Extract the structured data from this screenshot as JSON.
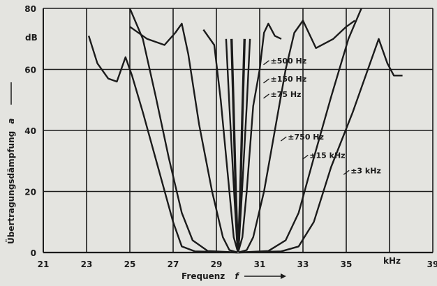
{
  "chart_data": {
    "type": "line",
    "title": "",
    "xlabel": "Frequenz",
    "xsymbol": "f",
    "ylabel": "Übertragungsdämpfung",
    "ysymbol": "a",
    "yunit": "dB",
    "xunit": "kHz",
    "xlim": [
      21,
      39
    ],
    "ylim": [
      0,
      80
    ],
    "grid": true,
    "x_ticks": [
      "21",
      "23",
      "25",
      "27",
      "29",
      "31",
      "33",
      "35",
      "39"
    ],
    "y_ticks": [
      "0",
      "20",
      "40",
      "60",
      "80"
    ],
    "series": [
      {
        "name": "±3 kHz",
        "style": "solid",
        "points": [
          [
            23.1,
            71
          ],
          [
            23.5,
            62
          ],
          [
            24.0,
            57
          ],
          [
            24.4,
            56
          ],
          [
            24.8,
            64
          ],
          [
            25.1,
            58
          ],
          [
            25.6,
            46
          ],
          [
            26.3,
            28
          ],
          [
            27.0,
            10
          ],
          [
            27.4,
            2
          ],
          [
            28.0,
            0.4
          ],
          [
            30.0,
            0
          ],
          [
            32.0,
            0.4
          ],
          [
            32.8,
            2
          ],
          [
            33.5,
            10
          ],
          [
            34.3,
            28
          ],
          [
            35.3,
            46
          ],
          [
            36.0,
            60
          ],
          [
            36.5,
            70
          ],
          [
            36.9,
            62
          ],
          [
            37.2,
            58
          ],
          [
            37.6,
            58
          ]
        ]
      },
      {
        "name": "±15 kHz",
        "style": "solid",
        "points": [
          [
            25.0,
            80
          ],
          [
            25.6,
            70
          ],
          [
            26.2,
            51
          ],
          [
            26.8,
            31
          ],
          [
            27.4,
            13
          ],
          [
            27.9,
            4
          ],
          [
            28.6,
            0.5
          ],
          [
            30.0,
            0
          ],
          [
            31.4,
            0.5
          ],
          [
            32.2,
            4
          ],
          [
            32.8,
            13
          ],
          [
            33.5,
            31
          ],
          [
            34.3,
            51
          ],
          [
            35.1,
            70
          ],
          [
            35.7,
            80
          ]
        ]
      },
      {
        "name": "±750 Hz",
        "style": "solid",
        "points": [
          [
            25.0,
            74
          ],
          [
            25.8,
            70
          ],
          [
            26.6,
            68
          ],
          [
            27.1,
            72
          ],
          [
            27.4,
            75
          ],
          [
            27.7,
            65
          ],
          [
            28.2,
            42
          ],
          [
            28.8,
            20
          ],
          [
            29.3,
            5
          ],
          [
            29.6,
            0.8
          ],
          [
            30.0,
            0
          ],
          [
            30.4,
            0.8
          ],
          [
            30.7,
            5
          ],
          [
            31.2,
            20
          ],
          [
            31.7,
            40
          ],
          [
            32.2,
            60
          ],
          [
            32.6,
            72
          ],
          [
            33.0,
            76
          ],
          [
            33.6,
            67
          ],
          [
            34.4,
            70
          ],
          [
            35.0,
            74
          ],
          [
            35.4,
            76
          ]
        ]
      },
      {
        "name": "±500 Hz",
        "style": "solid",
        "points": [
          [
            28.4,
            73
          ],
          [
            28.9,
            68
          ],
          [
            29.2,
            50
          ],
          [
            29.6,
            20
          ],
          [
            29.8,
            5
          ],
          [
            30.0,
            0
          ],
          [
            30.2,
            5
          ],
          [
            30.4,
            20
          ],
          [
            30.7,
            48
          ],
          [
            31.0,
            60
          ],
          [
            31.2,
            72
          ],
          [
            31.4,
            75
          ],
          [
            31.7,
            71
          ],
          [
            32.0,
            70
          ]
        ]
      },
      {
        "name": "±150 Hz",
        "style": "solid",
        "points": [
          [
            29.45,
            70
          ],
          [
            29.6,
            48
          ],
          [
            29.8,
            22
          ],
          [
            29.95,
            4
          ],
          [
            30.0,
            0
          ],
          [
            30.05,
            4
          ],
          [
            30.2,
            22
          ],
          [
            30.4,
            48
          ],
          [
            30.55,
            70
          ]
        ]
      },
      {
        "name": "±75 Hz",
        "style": "dashed",
        "points": [
          [
            29.7,
            70
          ],
          [
            29.8,
            45
          ],
          [
            29.9,
            18
          ],
          [
            29.97,
            4
          ],
          [
            30.0,
            0
          ],
          [
            30.03,
            4
          ],
          [
            30.1,
            18
          ],
          [
            30.2,
            45
          ],
          [
            30.3,
            70
          ]
        ]
      }
    ],
    "curve_labels": [
      {
        "text": "±500 Hz",
        "x": 31.5,
        "y": 62
      },
      {
        "text": "±150 Hz",
        "x": 31.5,
        "y": 56
      },
      {
        "text": "±75 Hz",
        "x": 31.5,
        "y": 51
      },
      {
        "text": "±750 Hz",
        "x": 32.3,
        "y": 37
      },
      {
        "text": "±15 kHz",
        "x": 33.3,
        "y": 31
      },
      {
        "text": "±3 kHz",
        "x": 35.2,
        "y": 26
      }
    ],
    "colors": {
      "background": "#e4e4e0",
      "grid": "#1b1b1b",
      "curve": "#1b1b1b",
      "dashed_curve": "#f2f2f2"
    }
  }
}
